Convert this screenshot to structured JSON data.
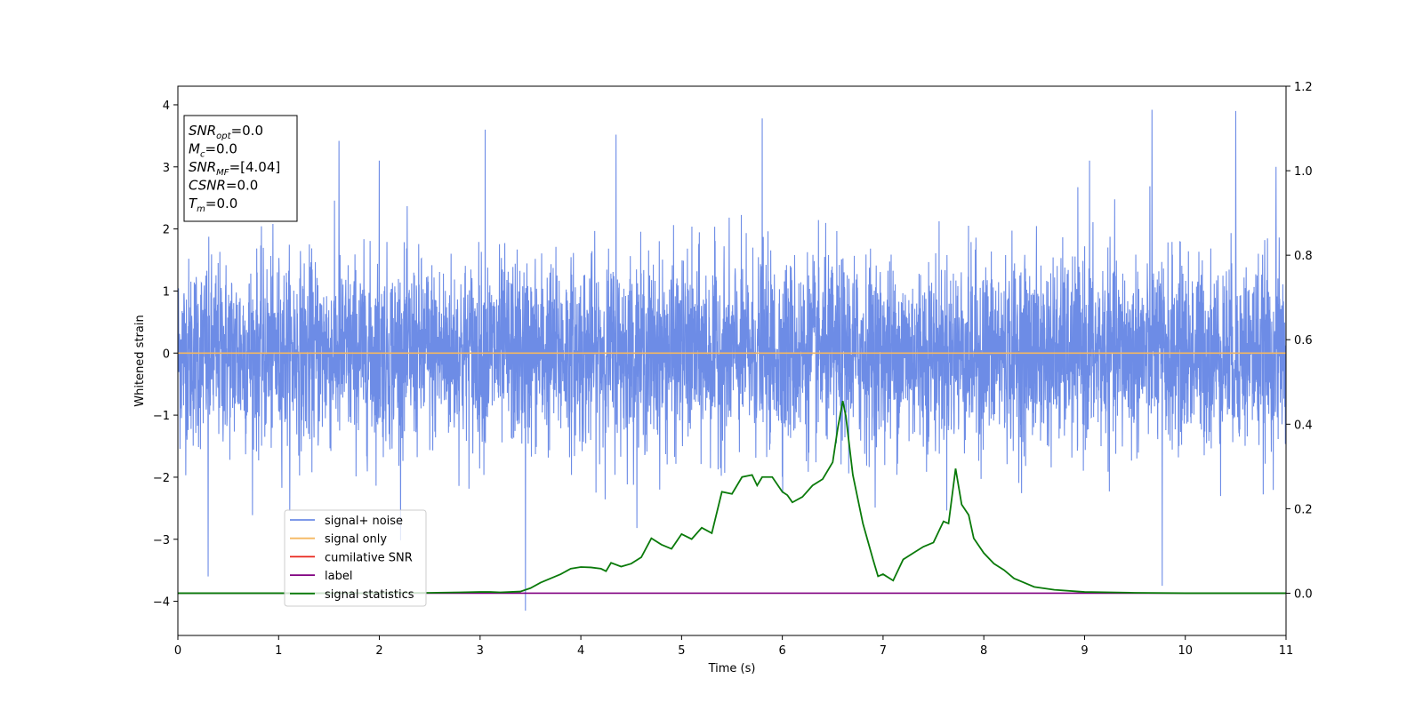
{
  "chart_data": {
    "type": "line",
    "xlabel": "Time (s)",
    "ylabel": "Whitened strain",
    "xlim": [
      0,
      11
    ],
    "ylim_left": [
      -4.55,
      4.3
    ],
    "ylim_right": [
      -0.1,
      1.2
    ],
    "x_ticks": [
      0,
      1,
      2,
      3,
      4,
      5,
      6,
      7,
      8,
      9,
      10,
      11
    ],
    "y_ticks_left": [
      -4,
      -3,
      -2,
      -1,
      0,
      1,
      2,
      3,
      4
    ],
    "y_ticks_right": [
      "0.0",
      "0.2",
      "0.4",
      "0.6",
      "0.8",
      "1.0",
      "1.2"
    ],
    "grid": false,
    "legend_position": "lower-left",
    "series": [
      {
        "name": "signal+ noise",
        "axis": "left",
        "color": "#6d8ce6",
        "style": "noise",
        "noise_std": 0.75,
        "notable_peaks": [
          [
            3.45,
            -4.15
          ],
          [
            9.67,
            3.92
          ],
          [
            9.77,
            -3.75
          ],
          [
            1.6,
            3.42
          ],
          [
            2.0,
            3.1
          ],
          [
            3.05,
            3.6
          ],
          [
            4.35,
            3.52
          ],
          [
            5.8,
            3.78
          ],
          [
            0.3,
            -3.6
          ],
          [
            9.05,
            3.1
          ],
          [
            10.5,
            3.9
          ],
          [
            10.9,
            3.0
          ]
        ]
      },
      {
        "name": "signal only",
        "axis": "left",
        "color": "#f5b860",
        "x": [
          0,
          11
        ],
        "y": [
          0,
          0
        ]
      },
      {
        "name": "cumilative SNR",
        "axis": "left",
        "color": "#e8251a",
        "x": [],
        "y": []
      },
      {
        "name": "label",
        "axis": "right",
        "color": "#800080",
        "x": [
          0,
          11
        ],
        "y": [
          0,
          0
        ]
      },
      {
        "name": "signal statistics",
        "axis": "right",
        "color": "#0a7a0a",
        "x": [
          0,
          0.5,
          1.0,
          1.5,
          2.0,
          2.5,
          2.8,
          3.0,
          3.1,
          3.2,
          3.3,
          3.4,
          3.5,
          3.6,
          3.7,
          3.8,
          3.9,
          4.0,
          4.1,
          4.2,
          4.25,
          4.3,
          4.4,
          4.5,
          4.6,
          4.7,
          4.8,
          4.9,
          5.0,
          5.1,
          5.2,
          5.3,
          5.4,
          5.5,
          5.6,
          5.7,
          5.75,
          5.8,
          5.9,
          6.0,
          6.05,
          6.1,
          6.2,
          6.3,
          6.4,
          6.5,
          6.55,
          6.6,
          6.63,
          6.7,
          6.8,
          6.9,
          6.95,
          7.0,
          7.1,
          7.2,
          7.3,
          7.4,
          7.5,
          7.55,
          7.6,
          7.65,
          7.72,
          7.78,
          7.85,
          7.9,
          8.0,
          8.1,
          8.2,
          8.3,
          8.4,
          8.5,
          8.7,
          9.0,
          9.5,
          10.0,
          10.5,
          11.0
        ],
        "y": [
          0.0,
          0.0,
          0.0,
          0.0,
          0.0,
          0.001,
          0.002,
          0.003,
          0.003,
          0.002,
          0.003,
          0.004,
          0.012,
          0.025,
          0.035,
          0.045,
          0.058,
          0.062,
          0.061,
          0.058,
          0.052,
          0.072,
          0.063,
          0.07,
          0.085,
          0.13,
          0.115,
          0.105,
          0.14,
          0.128,
          0.155,
          0.142,
          0.24,
          0.235,
          0.275,
          0.28,
          0.255,
          0.275,
          0.275,
          0.24,
          0.232,
          0.215,
          0.228,
          0.255,
          0.27,
          0.31,
          0.39,
          0.455,
          0.42,
          0.28,
          0.165,
          0.08,
          0.04,
          0.045,
          0.03,
          0.08,
          0.095,
          0.11,
          0.12,
          0.145,
          0.17,
          0.165,
          0.295,
          0.21,
          0.185,
          0.13,
          0.095,
          0.07,
          0.055,
          0.035,
          0.025,
          0.015,
          0.008,
          0.003,
          0.001,
          0.0,
          0.0,
          0.0
        ]
      }
    ]
  },
  "info_box": [
    {
      "base": "SNR",
      "sub": "opt",
      "value": "=0.0"
    },
    {
      "base": "M",
      "sub": "c",
      "value": "=0.0"
    },
    {
      "base": "SNR",
      "sub": "MF",
      "value": "=[4.04]"
    },
    {
      "base": "CSNR",
      "sub": "",
      "value": "=0.0"
    },
    {
      "base": "T",
      "sub": "m",
      "value": "=0.0"
    }
  ]
}
